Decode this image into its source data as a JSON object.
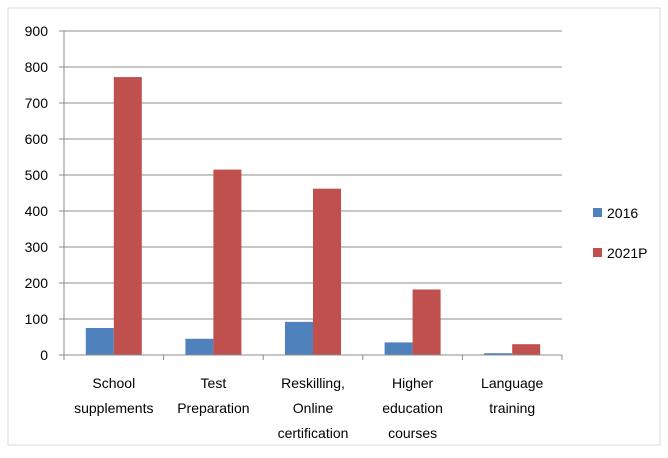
{
  "chart_data": {
    "type": "bar",
    "title": "",
    "xlabel": "",
    "ylabel": "",
    "categories": [
      [
        "School",
        "supplements"
      ],
      [
        "Test",
        "Preparation"
      ],
      [
        "Reskilling,",
        "Online",
        "certification"
      ],
      [
        "Higher",
        "education",
        "courses"
      ],
      [
        "Language",
        "training"
      ]
    ],
    "series": [
      {
        "name": "2016",
        "color": "#4f81bd",
        "values": [
          75,
          45,
          92,
          35,
          5
        ]
      },
      {
        "name": "2021P",
        "color": "#c0504d",
        "values": [
          772,
          515,
          462,
          182,
          30
        ]
      }
    ],
    "ylim": [
      0,
      900
    ],
    "yticks": [
      0,
      100,
      200,
      300,
      400,
      500,
      600,
      700,
      800,
      900
    ],
    "grid": true,
    "legend_position": "right"
  }
}
